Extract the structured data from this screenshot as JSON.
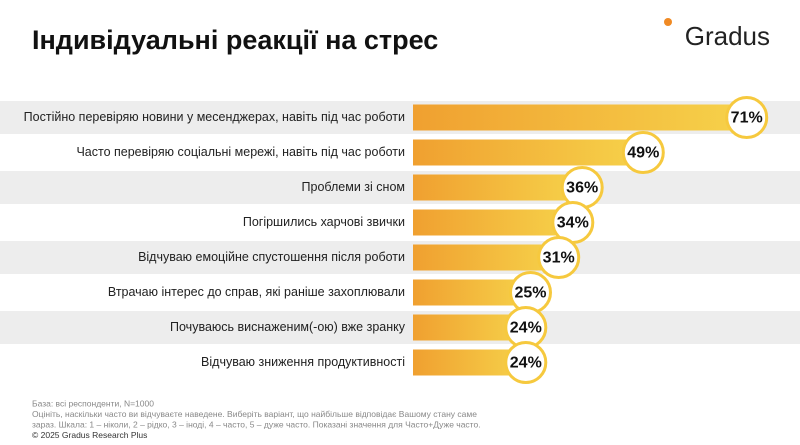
{
  "logo": "Gradus",
  "chart_data": {
    "type": "bar",
    "orientation": "horizontal",
    "title": "Індивідуальні реакції на стрес",
    "categories": [
      "Постійно перевіряю новини у месенджерах, навіть під час роботи",
      "Часто перевіряю соціальні мережі, навіть під час роботи",
      "Проблеми зі сном",
      "Погіршились харчові звички",
      "Відчуваю емоційне спустошення після роботи",
      "Втрачаю інтерес до справ, які раніше захоплювали",
      "Почуваюсь виснаженим(-ою) вже зранку",
      "Відчуваю зниження продуктивності"
    ],
    "values": [
      71,
      49,
      36,
      34,
      31,
      25,
      24,
      24
    ],
    "value_labels": [
      "71%",
      "49%",
      "36%",
      "34%",
      "31%",
      "25%",
      "24%",
      "24%"
    ],
    "color": "#f2a93b",
    "xlim": [
      0,
      80
    ],
    "footnotes": [
      "База: всі респонденти, N=1000",
      "Оцініть, наскільки часто ви відчуваєте наведене. Виберіть варіант, що найбільше відповідає Вашому стану саме",
      "зараз. Шкала: 1 – ніколи, 2 – рідко, 3 – іноді, 4 – часто, 5 – дуже часто. Показані значення для Часто+Дуже часто.",
      "© 2025 Gradus Research Plus"
    ]
  }
}
